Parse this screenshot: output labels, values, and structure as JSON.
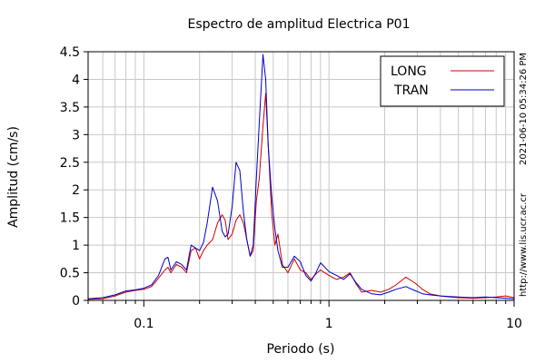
{
  "chart_data": {
    "type": "line",
    "title": "Espectro de amplitud Electrica P01",
    "xlabel": "Periodo (s)",
    "ylabel": "Amplitud (cm/s)",
    "x_scale": "log",
    "xlim": [
      0.05,
      10
    ],
    "ylim": [
      0,
      4.5
    ],
    "x_tick_labels": [
      {
        "value": 0.1,
        "label": "0.1"
      },
      {
        "value": 1,
        "label": "1"
      },
      {
        "value": 10,
        "label": "10"
      }
    ],
    "y_tick_labels": [
      "0",
      "0.5",
      "1",
      "1.5",
      "2",
      "2.5",
      "3",
      "3.5",
      "4",
      "4.5"
    ],
    "grid": true,
    "legend_position": "top-right",
    "series": [
      {
        "name": "LONG",
        "color": "#cc0000",
        "x": [
          0.05,
          0.06,
          0.07,
          0.08,
          0.09,
          0.1,
          0.11,
          0.12,
          0.13,
          0.135,
          0.14,
          0.15,
          0.16,
          0.17,
          0.18,
          0.19,
          0.2,
          0.21,
          0.22,
          0.235,
          0.25,
          0.265,
          0.275,
          0.285,
          0.3,
          0.315,
          0.33,
          0.345,
          0.36,
          0.375,
          0.39,
          0.405,
          0.42,
          0.44,
          0.455,
          0.47,
          0.49,
          0.51,
          0.53,
          0.56,
          0.6,
          0.65,
          0.7,
          0.75,
          0.8,
          0.85,
          0.9,
          0.95,
          1.0,
          1.1,
          1.2,
          1.3,
          1.4,
          1.5,
          1.7,
          1.9,
          2.1,
          2.3,
          2.6,
          2.9,
          3.2,
          3.5,
          4.0,
          4.5,
          5.0,
          6.0,
          7.0,
          8.0,
          9.0,
          10.0
        ],
        "values": [
          0.02,
          0.03,
          0.08,
          0.15,
          0.18,
          0.2,
          0.25,
          0.4,
          0.55,
          0.6,
          0.5,
          0.65,
          0.6,
          0.5,
          0.9,
          0.95,
          0.75,
          0.9,
          1.0,
          1.1,
          1.4,
          1.55,
          1.45,
          1.1,
          1.2,
          1.45,
          1.55,
          1.4,
          1.1,
          0.8,
          0.9,
          1.8,
          2.2,
          3.15,
          3.75,
          2.8,
          1.6,
          1.0,
          1.2,
          0.65,
          0.5,
          0.75,
          0.55,
          0.5,
          0.38,
          0.48,
          0.55,
          0.5,
          0.45,
          0.38,
          0.42,
          0.5,
          0.3,
          0.15,
          0.18,
          0.15,
          0.2,
          0.28,
          0.42,
          0.32,
          0.2,
          0.12,
          0.08,
          0.06,
          0.05,
          0.04,
          0.05,
          0.06,
          0.08,
          0.05
        ]
      },
      {
        "name": "TRAN",
        "color": "#0000cc",
        "x": [
          0.05,
          0.06,
          0.07,
          0.08,
          0.09,
          0.1,
          0.11,
          0.12,
          0.13,
          0.135,
          0.14,
          0.15,
          0.16,
          0.17,
          0.18,
          0.19,
          0.2,
          0.21,
          0.22,
          0.235,
          0.25,
          0.265,
          0.275,
          0.285,
          0.3,
          0.315,
          0.33,
          0.345,
          0.36,
          0.375,
          0.39,
          0.405,
          0.42,
          0.44,
          0.455,
          0.47,
          0.49,
          0.51,
          0.53,
          0.56,
          0.6,
          0.65,
          0.7,
          0.75,
          0.8,
          0.85,
          0.9,
          0.95,
          1.0,
          1.1,
          1.2,
          1.3,
          1.4,
          1.5,
          1.7,
          1.9,
          2.1,
          2.3,
          2.6,
          2.9,
          3.2,
          3.5,
          4.0,
          4.5,
          5.0,
          6.0,
          7.0,
          8.0,
          9.0,
          10.0
        ],
        "values": [
          0.03,
          0.05,
          0.1,
          0.17,
          0.19,
          0.22,
          0.28,
          0.45,
          0.75,
          0.78,
          0.55,
          0.7,
          0.65,
          0.55,
          1.0,
          0.95,
          0.9,
          1.05,
          1.4,
          2.05,
          1.8,
          1.25,
          1.15,
          1.2,
          1.7,
          2.5,
          2.35,
          1.6,
          1.1,
          0.8,
          1.0,
          2.2,
          3.2,
          4.45,
          4.0,
          2.8,
          1.9,
          1.3,
          0.9,
          0.6,
          0.6,
          0.8,
          0.7,
          0.45,
          0.35,
          0.5,
          0.68,
          0.6,
          0.52,
          0.45,
          0.38,
          0.48,
          0.32,
          0.2,
          0.12,
          0.1,
          0.15,
          0.2,
          0.25,
          0.18,
          0.12,
          0.1,
          0.08,
          0.07,
          0.06,
          0.05,
          0.06,
          0.05,
          0.04,
          0.03
        ]
      }
    ]
  },
  "side_texts": {
    "timestamp": "2021-06-10 05:34:26 PM",
    "url": "http://www.lis.ucr.ac.cr"
  }
}
